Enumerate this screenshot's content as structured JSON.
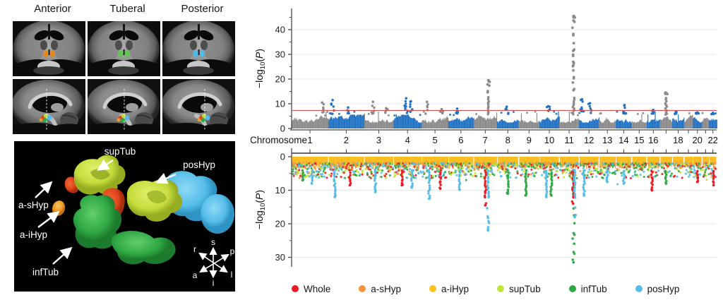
{
  "figure_name": "hypothalamus-gwas-figure",
  "mri": {
    "columns": [
      "Anterior",
      "Tuberal",
      "Posterior"
    ],
    "rows": [
      "coronal",
      "sagittal"
    ],
    "highlight_colors": {
      "anterior": "#e8871e",
      "tuberal": "#5ec94e",
      "posterior": "#4dbbe8"
    },
    "dash_x": {
      "anterior": 48,
      "tuberal": 52,
      "posterior": 60
    }
  },
  "render3d": {
    "labels": {
      "supTub": "supTub",
      "posHyp": "posHyp",
      "a_sHyp": "a-sHyp",
      "a_iHyp": "a-iHyp",
      "infTub": "infTub"
    },
    "compass": {
      "s": "s",
      "i": "i",
      "r": "r",
      "l": "l",
      "a": "a",
      "p": "p"
    },
    "region_colors": {
      "supTub": "#c6dc3e",
      "posHyp": "#56bde9",
      "whole": "#e0461d",
      "a_sHyp": "#f09a28",
      "infTub": "#2fa844"
    }
  },
  "chart_data": [
    {
      "type": "scatter",
      "subtype": "manhattan",
      "ylabel": "-log10(P)",
      "xlabel": "Chromosome",
      "ylim": [
        0,
        46
      ],
      "yticks": [
        0,
        10,
        20,
        30,
        40
      ],
      "grid": true,
      "significance_line": 7.3,
      "significance_color": "#e15050",
      "block_colors": [
        "#8b8b8b",
        "#2272c3"
      ],
      "chromosome_widths": [
        249,
        243,
        198,
        191,
        181,
        171,
        159,
        146,
        141,
        134,
        135,
        134,
        115,
        107,
        102,
        90,
        83,
        80,
        59,
        63,
        48,
        51
      ],
      "xtick_labels": [
        "1",
        "2",
        "3",
        "4",
        "5",
        "6",
        "7",
        "8",
        "9",
        "10",
        "11",
        "12",
        "13",
        "14",
        "15",
        "16",
        "18",
        "20",
        "22"
      ],
      "xtick_chroms": [
        1,
        2,
        3,
        4,
        5,
        6,
        7,
        8,
        9,
        10,
        11,
        12,
        13,
        14,
        15,
        16,
        18,
        20,
        22
      ],
      "baseline_range": [
        2.4,
        5.6
      ],
      "peaks": [
        {
          "chr": 1,
          "pos": 0.83,
          "max": 10.5,
          "n": 3
        },
        {
          "chr": 2,
          "pos": 0.12,
          "max": 11.5,
          "n": 5
        },
        {
          "chr": 2,
          "pos": 0.55,
          "max": 8.5,
          "n": 2
        },
        {
          "chr": 3,
          "pos": 0.3,
          "max": 10.8,
          "n": 4
        },
        {
          "chr": 3,
          "pos": 0.75,
          "max": 8.2,
          "n": 2
        },
        {
          "chr": 4,
          "pos": 0.45,
          "max": 12.2,
          "n": 6
        },
        {
          "chr": 4,
          "pos": 0.62,
          "max": 11.0,
          "n": 4
        },
        {
          "chr": 5,
          "pos": 0.2,
          "max": 10.8,
          "n": 3
        },
        {
          "chr": 5,
          "pos": 0.75,
          "max": 7.8,
          "n": 2
        },
        {
          "chr": 6,
          "pos": 0.35,
          "max": 8.0,
          "n": 3
        },
        {
          "chr": 7,
          "pos": 0.63,
          "max": 19.5,
          "n": 12,
          "ladder": true
        },
        {
          "chr": 8,
          "pos": 0.45,
          "max": 8.8,
          "n": 3
        },
        {
          "chr": 10,
          "pos": 0.45,
          "max": 9.0,
          "n": 3
        },
        {
          "chr": 11,
          "pos": 0.72,
          "max": 45.5,
          "n": 24,
          "ladder": true
        },
        {
          "chr": 12,
          "pos": 0.15,
          "max": 11.8,
          "n": 5
        },
        {
          "chr": 12,
          "pos": 0.55,
          "max": 10.2,
          "n": 3
        },
        {
          "chr": 14,
          "pos": 0.55,
          "max": 9.5,
          "n": 4
        },
        {
          "chr": 16,
          "pos": 0.5,
          "max": 7.5,
          "n": 2
        },
        {
          "chr": 17,
          "pos": 0.5,
          "max": 14.5,
          "n": 9,
          "ladder": true
        },
        {
          "chr": 18,
          "pos": 0.35,
          "max": 6.8,
          "n": 2
        },
        {
          "chr": 20,
          "pos": 0.5,
          "max": 6.5,
          "n": 2
        },
        {
          "chr": 22,
          "pos": 0.5,
          "max": 6.3,
          "n": 2
        }
      ]
    },
    {
      "type": "scatter",
      "subtype": "manhattan-inverted",
      "ylabel": "-log10(P)",
      "ylim": [
        0,
        33
      ],
      "yticks": [
        0,
        10,
        20,
        30
      ],
      "grid": true,
      "series": [
        "Whole",
        "a-sHyp",
        "a-iHyp",
        "supTub",
        "infTub",
        "posHyp"
      ],
      "spikes": [
        {
          "chr": 1,
          "pos": 0.3,
          "depth": 7.0,
          "series": "infTub"
        },
        {
          "chr": 1,
          "pos": 0.55,
          "depth": 8.0,
          "series": "posHyp"
        },
        {
          "chr": 2,
          "pos": 0.18,
          "depth": 12.0,
          "series": "posHyp"
        },
        {
          "chr": 2,
          "pos": 0.6,
          "depth": 8.5,
          "series": "Whole"
        },
        {
          "chr": 3,
          "pos": 0.38,
          "depth": 10.5,
          "series": "posHyp"
        },
        {
          "chr": 4,
          "pos": 0.3,
          "depth": 8.5,
          "series": "Whole"
        },
        {
          "chr": 4,
          "pos": 0.65,
          "depth": 9.2,
          "series": "posHyp"
        },
        {
          "chr": 5,
          "pos": 0.28,
          "depth": 12.5,
          "series": "posHyp"
        },
        {
          "chr": 5,
          "pos": 0.7,
          "depth": 9.5,
          "series": "Whole"
        },
        {
          "chr": 6,
          "pos": 0.45,
          "depth": 9.8,
          "series": "posHyp"
        },
        {
          "chr": 7,
          "pos": 0.62,
          "depth": 22.0,
          "series": "posHyp",
          "ladder": true
        },
        {
          "chr": 7,
          "pos": 0.5,
          "depth": 14.5,
          "series": "Whole"
        },
        {
          "chr": 8,
          "pos": 0.5,
          "depth": 11.0,
          "series": "infTub"
        },
        {
          "chr": 9,
          "pos": 0.35,
          "depth": 11.5,
          "series": "infTub"
        },
        {
          "chr": 10,
          "pos": 0.35,
          "depth": 12.0,
          "series": "posHyp"
        },
        {
          "chr": 10,
          "pos": 0.6,
          "depth": 11.5,
          "series": "infTub"
        },
        {
          "chr": 11,
          "pos": 0.72,
          "depth": 31.5,
          "series": "infTub",
          "ladder": true
        },
        {
          "chr": 11,
          "pos": 0.7,
          "depth": 14.0,
          "series": "Whole"
        },
        {
          "chr": 11,
          "pos": 0.78,
          "depth": 18.0,
          "series": "posHyp"
        },
        {
          "chr": 12,
          "pos": 0.25,
          "depth": 11.5,
          "series": "posHyp"
        },
        {
          "chr": 13,
          "pos": 0.5,
          "depth": 7.5,
          "series": "posHyp"
        },
        {
          "chr": 14,
          "pos": 0.5,
          "depth": 8.0,
          "series": "posHyp"
        },
        {
          "chr": 16,
          "pos": 0.4,
          "depth": 10.0,
          "series": "Whole"
        },
        {
          "chr": 17,
          "pos": 0.5,
          "depth": 8.0,
          "series": "infTub"
        },
        {
          "chr": 20,
          "pos": 0.5,
          "depth": 7.5,
          "series": "Whole"
        },
        {
          "chr": 22,
          "pos": 0.6,
          "depth": 8.5,
          "series": "Whole"
        }
      ]
    }
  ],
  "legend": {
    "items": [
      {
        "label": "Whole",
        "color": "#ed1c24"
      },
      {
        "label": "a-sHyp",
        "color": "#f5953b"
      },
      {
        "label": "a-iHyp",
        "color": "#fcc11e"
      },
      {
        "label": "supTub",
        "color": "#c0e437"
      },
      {
        "label": "infTub",
        "color": "#2fa844"
      },
      {
        "label": "posHyp",
        "color": "#56bde9"
      }
    ]
  }
}
